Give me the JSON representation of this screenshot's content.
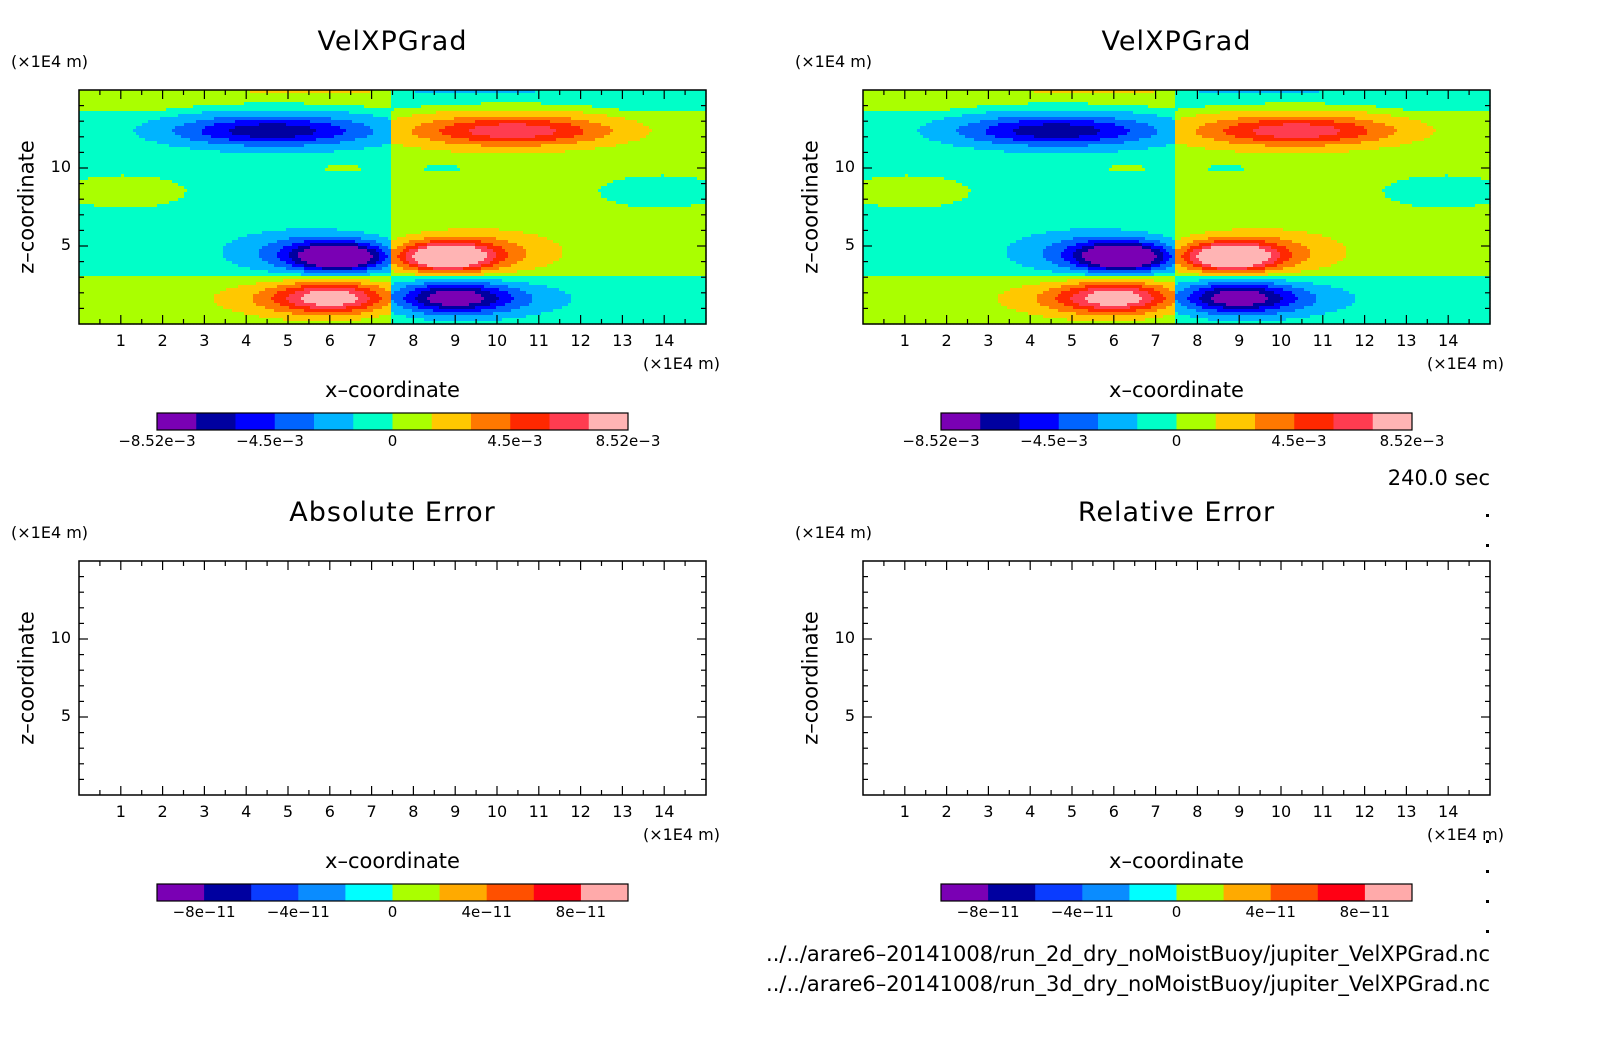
{
  "panels": [
    {
      "title": "VelXPGrad",
      "y_unit": "(×1E4 m)",
      "x_unit": "(×1E4 m)",
      "xlabel": "x–coordinate",
      "ylabel": "z–coordinate",
      "colorbar_labels": [
        "−8.52e−3",
        "−4.5e−3",
        "0",
        "4.5e−3",
        "8.52e−3"
      ]
    },
    {
      "title": "VelXPGrad",
      "y_unit": "(×1E4 m)",
      "x_unit": "(×1E4 m)",
      "xlabel": "x–coordinate",
      "ylabel": "z–coordinate",
      "colorbar_labels": [
        "−8.52e−3",
        "−4.5e−3",
        "0",
        "4.5e−3",
        "8.52e−3"
      ]
    },
    {
      "title": "Absolute Error",
      "y_unit": "(×1E4 m)",
      "x_unit": "(×1E4 m)",
      "xlabel": "x–coordinate",
      "ylabel": "z–coordinate",
      "colorbar_labels": [
        "−8e−11",
        "−4e−11",
        "0",
        "4e−11",
        "8e−11"
      ]
    },
    {
      "title": "Relative Error",
      "y_unit": "(×1E4 m)",
      "x_unit": "(×1E4 m)",
      "xlabel": "x–coordinate",
      "ylabel": "z–coordinate",
      "colorbar_labels": [
        "−8e−11",
        "−4e−11",
        "0",
        "4e−11",
        "8e−11"
      ]
    }
  ],
  "time_label": "240.0 sec",
  "file_paths": [
    "../../arare6–20141008/run_2d_dry_noMoistBuoy/jupiter_VelXPGrad.nc",
    "../../arare6–20141008/run_3d_dry_noMoistBuoy/jupiter_VelXPGrad.nc"
  ],
  "colors": {
    "levels_velx": [
      "#7a00b4",
      "#0000a0",
      "#0000ff",
      "#0064ff",
      "#00b4ff",
      "#00ffc8",
      "#aaff00",
      "#ffc800",
      "#ff7800",
      "#ff2800",
      "#ff3c50",
      "#ffb4b4"
    ],
    "levels_err": [
      "#7a00b4",
      "#0000a0",
      "#0a3cff",
      "#0a8cff",
      "#00ffff",
      "#aaff00",
      "#ffaa00",
      "#ff5000",
      "#ff0014",
      "#ffaaaa"
    ]
  },
  "chart_data": [
    {
      "type": "heatmap",
      "title": "VelXPGrad",
      "xlabel": "x–coordinate",
      "ylabel": "z–coordinate",
      "x_ticks": [
        1,
        2,
        3,
        4,
        5,
        6,
        7,
        8,
        9,
        10,
        11,
        12,
        13,
        14
      ],
      "y_ticks": [
        5,
        10
      ],
      "xlim": [
        0,
        15
      ],
      "ylim": [
        0,
        15
      ],
      "colorbar_range": [
        -0.00852,
        0.00852
      ],
      "field": "antisymmetric dipole pattern about x=7.5, extrema ±8.52e−3 near z≈4.3",
      "features": [
        {
          "x": 6.4,
          "z": 4.3,
          "value": -0.0085
        },
        {
          "x": 8.6,
          "z": 4.3,
          "value": 0.0085
        },
        {
          "x": 6.2,
          "z": 1.8,
          "value": 0.006
        },
        {
          "x": 8.8,
          "z": 1.8,
          "value": -0.0075
        },
        {
          "x": 4.5,
          "z": 12.5,
          "value": -0.005
        },
        {
          "x": 10.5,
          "z": 12.5,
          "value": 0.005
        }
      ]
    },
    {
      "type": "heatmap",
      "title": "VelXPGrad",
      "xlabel": "x–coordinate",
      "ylabel": "z–coordinate",
      "x_ticks": [
        1,
        2,
        3,
        4,
        5,
        6,
        7,
        8,
        9,
        10,
        11,
        12,
        13,
        14
      ],
      "y_ticks": [
        5,
        10
      ],
      "xlim": [
        0,
        15
      ],
      "ylim": [
        0,
        15
      ],
      "colorbar_range": [
        -0.00852,
        0.00852
      ],
      "field": "identical to first panel",
      "features": [
        {
          "x": 6.4,
          "z": 4.3,
          "value": -0.0085
        },
        {
          "x": 8.6,
          "z": 4.3,
          "value": 0.0085
        },
        {
          "x": 6.2,
          "z": 1.8,
          "value": 0.006
        },
        {
          "x": 8.8,
          "z": 1.8,
          "value": -0.0075
        },
        {
          "x": 4.5,
          "z": 12.5,
          "value": -0.005
        },
        {
          "x": 10.5,
          "z": 12.5,
          "value": 0.005
        }
      ]
    },
    {
      "type": "heatmap",
      "title": "Absolute Error",
      "xlabel": "x–coordinate",
      "ylabel": "z–coordinate",
      "x_ticks": [
        1,
        2,
        3,
        4,
        5,
        6,
        7,
        8,
        9,
        10,
        11,
        12,
        13,
        14
      ],
      "y_ticks": [
        5,
        10
      ],
      "xlim": [
        0,
        15
      ],
      "ylim": [
        0,
        15
      ],
      "colorbar_range": [
        -1e-10,
        1e-10
      ],
      "field": "empty (no contours drawn)"
    },
    {
      "type": "heatmap",
      "title": "Relative Error",
      "xlabel": "x–coordinate",
      "ylabel": "z–coordinate",
      "x_ticks": [
        1,
        2,
        3,
        4,
        5,
        6,
        7,
        8,
        9,
        10,
        11,
        12,
        13,
        14
      ],
      "y_ticks": [
        5,
        10
      ],
      "xlim": [
        0,
        15
      ],
      "ylim": [
        0,
        15
      ],
      "colorbar_range": [
        -1e-10,
        1e-10
      ],
      "field": "empty (no contours drawn)"
    }
  ]
}
